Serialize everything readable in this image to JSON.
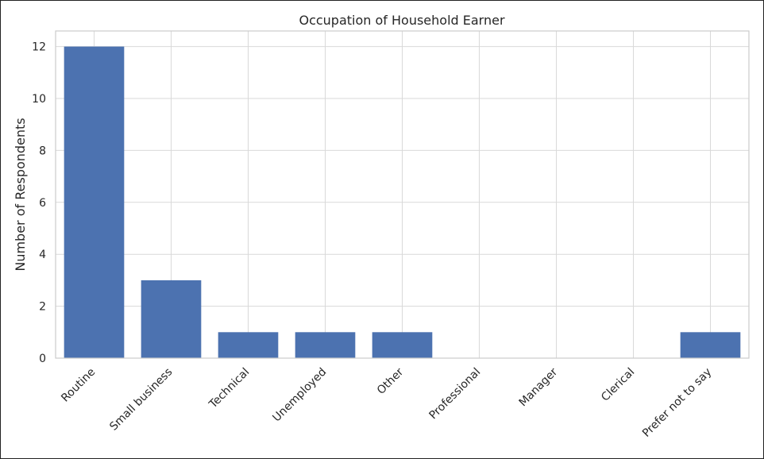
{
  "chart_data": {
    "type": "bar",
    "title": "Occupation of Household Earner",
    "xlabel": "",
    "ylabel": "Number of Respondents",
    "categories": [
      "Routine",
      "Small business",
      "Technical",
      "Unemployed",
      "Other",
      "Professional",
      "Manager",
      "Clerical",
      "Prefer not to say"
    ],
    "values": [
      12,
      3,
      1,
      1,
      1,
      0,
      0,
      0,
      1
    ],
    "ylim": [
      0,
      12.6
    ],
    "yticks": [
      0,
      2,
      4,
      6,
      8,
      10,
      12
    ],
    "grid": true,
    "bar_color": "#4c72b0",
    "grid_color": "#d9d9d9",
    "frame_color": "#cccccc"
  }
}
